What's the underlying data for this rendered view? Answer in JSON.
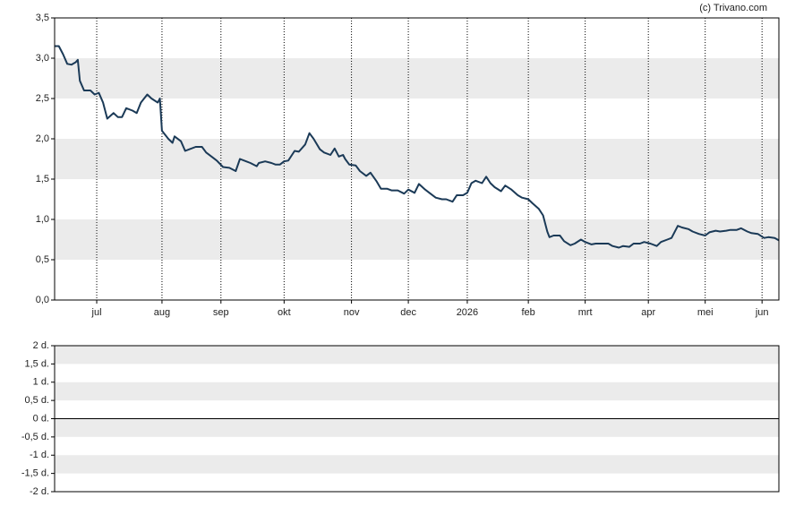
{
  "source": "(c) Trivano.com",
  "chart_data": [
    {
      "type": "line",
      "grid": "bands",
      "band_color": "#ebebeb",
      "vertical_grid": "dotted",
      "xlim": [
        0,
        344
      ],
      "ylim": [
        0,
        3.5
      ],
      "xticks": [
        {
          "value": 20,
          "label": "jul"
        },
        {
          "value": 51,
          "label": "aug"
        },
        {
          "value": 79,
          "label": "sep"
        },
        {
          "value": 109,
          "label": "okt"
        },
        {
          "value": 141,
          "label": "nov"
        },
        {
          "value": 168,
          "label": "dec"
        },
        {
          "value": 196,
          "label": "2026"
        },
        {
          "value": 225,
          "label": "feb"
        },
        {
          "value": 252,
          "label": "mrt"
        },
        {
          "value": 282,
          "label": "apr"
        },
        {
          "value": 309,
          "label": "mei"
        },
        {
          "value": 336,
          "label": "jun"
        }
      ],
      "yticks": [
        {
          "value": 0,
          "label": "0,0"
        },
        {
          "value": 0.5,
          "label": "0,5"
        },
        {
          "value": 1,
          "label": "1,0"
        },
        {
          "value": 1.5,
          "label": "1,5"
        },
        {
          "value": 2,
          "label": "2,0"
        },
        {
          "value": 2.5,
          "label": "2,5"
        },
        {
          "value": 3,
          "label": "3,0"
        },
        {
          "value": 3.5,
          "label": "3,5"
        }
      ],
      "series": [
        {
          "color": "#1b3a57",
          "x": [
            0,
            2,
            4,
            6,
            8,
            10,
            11,
            12,
            14,
            17,
            19,
            21,
            23,
            25,
            28,
            30,
            32,
            34,
            37,
            39,
            41,
            44,
            46,
            49,
            50,
            51,
            54,
            56,
            57,
            60,
            62,
            64,
            67,
            70,
            72,
            75,
            77,
            80,
            83,
            86,
            88,
            91,
            93,
            96,
            97,
            100,
            103,
            105,
            107,
            109,
            111,
            114,
            116,
            119,
            121,
            123,
            126,
            128,
            131,
            133,
            135,
            137,
            138,
            140,
            143,
            145,
            148,
            150,
            153,
            155,
            158,
            160,
            163,
            166,
            168,
            171,
            173,
            176,
            178,
            181,
            184,
            186,
            189,
            191,
            194,
            196,
            198,
            200,
            203,
            205,
            207,
            209,
            212,
            214,
            217,
            220,
            222,
            225,
            227,
            230,
            232,
            234,
            235,
            237,
            240,
            242,
            245,
            247,
            250,
            252,
            255,
            257,
            260,
            263,
            265,
            268,
            270,
            273,
            275,
            278,
            280,
            283,
            286,
            288,
            291,
            293,
            296,
            298,
            301,
            303,
            306,
            309,
            311,
            314,
            316,
            319,
            321,
            324,
            326,
            329,
            331,
            334,
            337,
            339,
            342,
            344
          ],
          "values": [
            3.15,
            3.15,
            3.05,
            2.93,
            2.92,
            2.95,
            2.98,
            2.72,
            2.6,
            2.6,
            2.55,
            2.57,
            2.45,
            2.25,
            2.32,
            2.27,
            2.27,
            2.38,
            2.35,
            2.32,
            2.45,
            2.55,
            2.5,
            2.45,
            2.5,
            2.1,
            2.0,
            1.95,
            2.03,
            1.97,
            1.85,
            1.87,
            1.9,
            1.9,
            1.83,
            1.77,
            1.73,
            1.65,
            1.64,
            1.6,
            1.75,
            1.72,
            1.7,
            1.66,
            1.7,
            1.72,
            1.7,
            1.68,
            1.68,
            1.72,
            1.73,
            1.85,
            1.84,
            1.93,
            2.07,
            2.0,
            1.87,
            1.83,
            1.8,
            1.88,
            1.78,
            1.8,
            1.75,
            1.68,
            1.67,
            1.6,
            1.54,
            1.58,
            1.47,
            1.38,
            1.38,
            1.36,
            1.36,
            1.32,
            1.37,
            1.33,
            1.44,
            1.37,
            1.33,
            1.27,
            1.25,
            1.25,
            1.22,
            1.3,
            1.3,
            1.33,
            1.45,
            1.48,
            1.45,
            1.53,
            1.45,
            1.4,
            1.35,
            1.42,
            1.37,
            1.3,
            1.27,
            1.25,
            1.2,
            1.13,
            1.05,
            0.85,
            0.78,
            0.8,
            0.8,
            0.73,
            0.68,
            0.7,
            0.75,
            0.72,
            0.69,
            0.7,
            0.7,
            0.7,
            0.67,
            0.65,
            0.67,
            0.66,
            0.7,
            0.7,
            0.72,
            0.7,
            0.67,
            0.72,
            0.75,
            0.77,
            0.92,
            0.9,
            0.88,
            0.85,
            0.82,
            0.8,
            0.84,
            0.86,
            0.85,
            0.86,
            0.87,
            0.87,
            0.89,
            0.85,
            0.83,
            0.82,
            0.77,
            0.78,
            0.77,
            0.74
          ]
        }
      ]
    },
    {
      "type": "bar",
      "grid": "bands",
      "band_color": "#ebebeb",
      "zero_line": true,
      "ylim": [
        -2,
        2
      ],
      "yticks": [
        {
          "value": -2,
          "label": "-2 d."
        },
        {
          "value": -1.5,
          "label": "-1,5 d."
        },
        {
          "value": -1,
          "label": "-1 d."
        },
        {
          "value": -0.5,
          "label": "-0,5 d."
        },
        {
          "value": 0,
          "label": "0 d."
        },
        {
          "value": 0.5,
          "label": "0,5 d."
        },
        {
          "value": 1,
          "label": "1 d."
        },
        {
          "value": 1.5,
          "label": "1,5 d."
        },
        {
          "value": 2,
          "label": "2 d."
        }
      ]
    }
  ]
}
